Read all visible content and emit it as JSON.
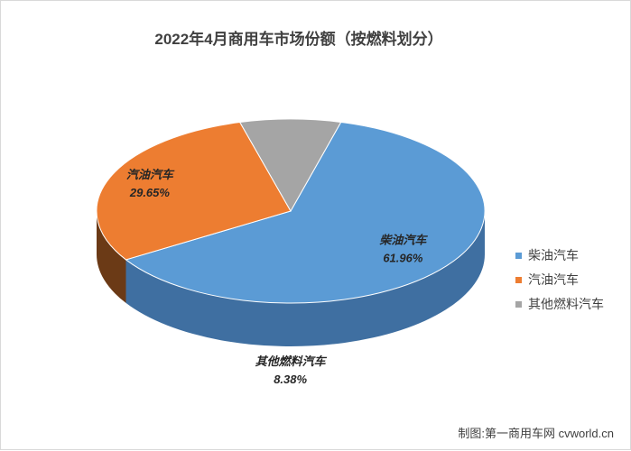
{
  "chart_data": {
    "type": "pie",
    "title": "2022年4月商用车市场份额（按燃料划分）",
    "categories": [
      "柴油汽车",
      "汽油汽车",
      "其他燃料汽车"
    ],
    "values": [
      61.96,
      29.65,
      8.38
    ],
    "value_labels": [
      "61.96%",
      "29.65%",
      "8.38%"
    ],
    "colors": [
      "#5b9bd5",
      "#ed7d31",
      "#a5a5a5"
    ],
    "side_colors": [
      "#3f6fa1",
      "#6b3a16",
      "#555555"
    ],
    "legend_position": "right",
    "style": "3d-pie"
  },
  "footer": {
    "source": "制图:第一商用车网 cvworld.cn"
  }
}
